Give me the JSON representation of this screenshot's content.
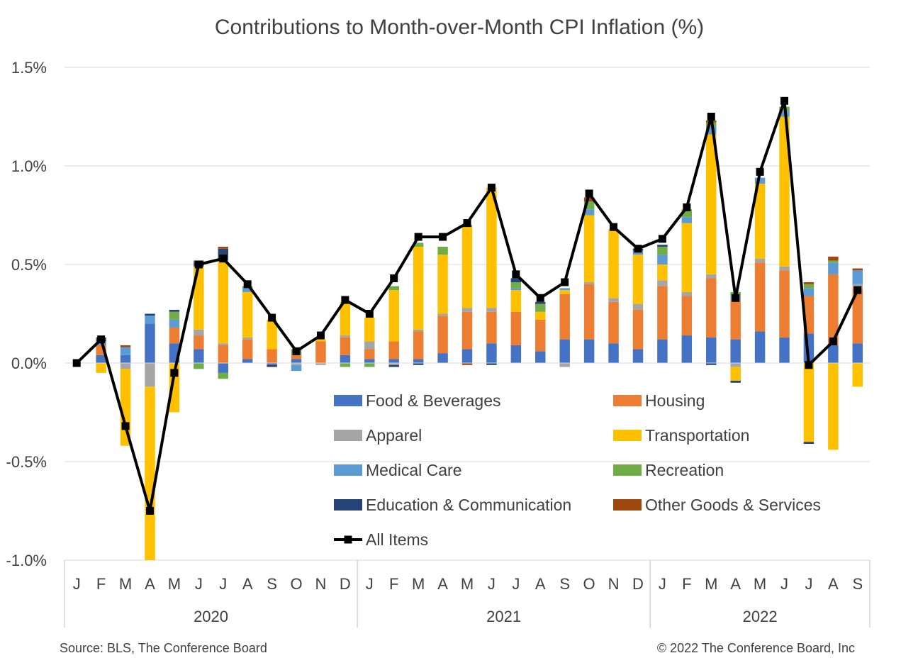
{
  "chart_data": {
    "type": "bar",
    "stacked": true,
    "title": "Contributions to Month-over-Month CPI Inflation (%)",
    "ylim": [
      -1.0,
      1.5
    ],
    "yticks": [
      1.5,
      1.0,
      0.5,
      0.0,
      -0.5,
      -1.0
    ],
    "ytick_labels": [
      "1.5%",
      "1.0%",
      "0.5%",
      "0.0%",
      "-0.5%",
      "-1.0%"
    ],
    "categories": [
      "J",
      "F",
      "M",
      "A",
      "M",
      "J",
      "J",
      "A",
      "S",
      "O",
      "N",
      "D",
      "J",
      "F",
      "M",
      "A",
      "M",
      "J",
      "J",
      "A",
      "S",
      "O",
      "N",
      "D",
      "J",
      "F",
      "M",
      "A",
      "M",
      "J",
      "J",
      "A",
      "S"
    ],
    "years": [
      {
        "label": "2020",
        "start": 0,
        "end": 11
      },
      {
        "label": "2021",
        "start": 12,
        "end": 23
      },
      {
        "label": "2022",
        "start": 24,
        "end": 32
      }
    ],
    "series": [
      {
        "name": "Food & Beverages",
        "color": "#4472C4",
        "values": [
          0.0,
          0.04,
          0.04,
          0.2,
          0.1,
          0.07,
          -0.05,
          0.02,
          -0.01,
          0.02,
          0.0,
          0.04,
          0.02,
          0.02,
          0.02,
          0.05,
          0.07,
          0.1,
          0.09,
          0.06,
          0.12,
          0.12,
          0.1,
          0.07,
          0.12,
          0.14,
          0.13,
          0.12,
          0.16,
          0.13,
          0.15,
          0.09,
          0.1
        ]
      },
      {
        "name": "Housing",
        "color": "#ED7D31",
        "values": [
          0.0,
          0.05,
          0.0,
          0.0,
          0.08,
          0.07,
          0.09,
          0.1,
          0.07,
          0.02,
          0.11,
          0.09,
          0.05,
          0.09,
          0.14,
          0.19,
          0.19,
          0.16,
          0.17,
          0.16,
          0.23,
          0.28,
          0.21,
          0.2,
          0.27,
          0.2,
          0.3,
          0.2,
          0.35,
          0.34,
          0.19,
          0.36,
          0.28
        ]
      },
      {
        "name": "Apparel",
        "color": "#A5A5A5",
        "values": [
          0.0,
          0.0,
          -0.03,
          -0.12,
          0.0,
          0.03,
          0.01,
          0.01,
          0.0,
          -0.01,
          -0.01,
          0.01,
          0.04,
          -0.01,
          0.01,
          0.01,
          0.02,
          0.02,
          0.0,
          0.0,
          -0.02,
          0.01,
          0.02,
          0.03,
          0.03,
          0.02,
          0.02,
          -0.02,
          0.02,
          0.02,
          0.0,
          0.0,
          0.02
        ]
      },
      {
        "name": "Transportation",
        "color": "#FFC000",
        "values": [
          0.0,
          -0.05,
          -0.39,
          -0.88,
          -0.25,
          0.32,
          0.42,
          0.23,
          0.15,
          0.0,
          0.01,
          0.17,
          0.12,
          0.26,
          0.42,
          0.3,
          0.41,
          0.61,
          0.11,
          0.04,
          0.02,
          0.34,
          0.35,
          0.25,
          0.08,
          0.35,
          0.71,
          -0.07,
          0.38,
          0.76,
          -0.4,
          -0.44,
          -0.12
        ]
      },
      {
        "name": "Medical Care",
        "color": "#5B9BD5",
        "values": [
          0.0,
          0.02,
          0.04,
          0.04,
          0.04,
          0.0,
          0.0,
          0.02,
          0.0,
          -0.03,
          0.0,
          0.0,
          0.0,
          0.0,
          0.0,
          0.0,
          0.0,
          0.0,
          0.01,
          0.0,
          0.01,
          0.03,
          0.0,
          0.02,
          0.05,
          0.03,
          0.04,
          0.02,
          0.03,
          0.03,
          0.04,
          0.06,
          0.07
        ]
      },
      {
        "name": "Recreation",
        "color": "#70AD47",
        "values": [
          0.0,
          0.0,
          0.0,
          0.0,
          0.04,
          -0.03,
          -0.03,
          0.01,
          0.0,
          0.03,
          0.0,
          -0.02,
          -0.02,
          0.02,
          0.02,
          0.04,
          0.01,
          0.0,
          0.03,
          0.04,
          0.0,
          0.04,
          0.0,
          0.0,
          0.04,
          0.04,
          0.02,
          0.02,
          0.0,
          0.02,
          0.02,
          0.01,
          0.0
        ]
      },
      {
        "name": "Education & Communication",
        "color": "#264478",
        "values": [
          0.0,
          0.01,
          0.0,
          0.01,
          0.01,
          0.02,
          0.06,
          0.0,
          -0.01,
          0.0,
          0.0,
          0.0,
          0.0,
          -0.01,
          -0.01,
          0.0,
          0.0,
          -0.01,
          0.02,
          0.01,
          0.0,
          0.0,
          0.0,
          0.01,
          0.01,
          0.0,
          -0.01,
          -0.01,
          0.0,
          0.0,
          -0.01,
          0.0,
          0.0
        ]
      },
      {
        "name": "Other Goods & Services",
        "color": "#9E480E",
        "values": [
          0.0,
          0.01,
          0.01,
          0.0,
          0.0,
          0.01,
          0.01,
          0.0,
          0.0,
          0.0,
          0.0,
          0.0,
          0.0,
          0.0,
          0.0,
          0.0,
          -0.01,
          0.0,
          0.0,
          0.0,
          0.0,
          0.02,
          0.0,
          0.0,
          0.0,
          0.0,
          0.01,
          0.0,
          0.0,
          0.0,
          0.01,
          0.02,
          0.01
        ]
      }
    ],
    "line_series": {
      "name": "All Items",
      "color": "#000000",
      "values": [
        0.0,
        0.12,
        -0.32,
        -0.75,
        -0.05,
        0.5,
        0.53,
        0.4,
        0.23,
        0.06,
        0.14,
        0.32,
        0.25,
        0.43,
        0.64,
        0.64,
        0.71,
        0.89,
        0.45,
        0.33,
        0.41,
        0.86,
        0.69,
        0.58,
        0.63,
        0.79,
        1.25,
        0.33,
        0.97,
        1.33,
        -0.01,
        0.11,
        0.37
      ]
    },
    "legend_position": "center-bottom, inside plot",
    "legend": [
      "Food & Beverages",
      "Housing",
      "Apparel",
      "Transportation",
      "Medical Care",
      "Recreation",
      "Education & Communication",
      "Other Goods & Services",
      "All Items"
    ]
  },
  "footer": {
    "source": "Source: BLS, The Conference Board",
    "copyright": "© 2022 The Conference Board, Inc"
  }
}
